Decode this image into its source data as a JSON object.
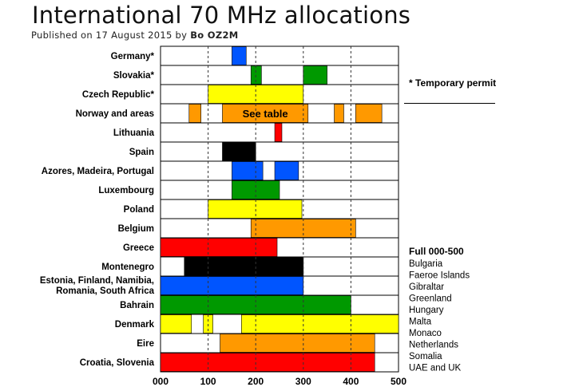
{
  "header": {
    "title": "International 70 MHz allocations",
    "published_prefix": "Published on 17 August 2015 by",
    "author": "Bo OZ2M"
  },
  "colors": {
    "yellow": "#ffff00",
    "orange": "#ff9900",
    "red": "#ff0000",
    "green": "#009900",
    "blue": "#0055ff",
    "black": "#000000"
  },
  "chart_data": {
    "type": "bar",
    "subtype": "horizontal-range",
    "xlim": [
      0,
      500
    ],
    "x_ticks": [
      0,
      100,
      200,
      300,
      400,
      500
    ],
    "x_tick_labels": [
      "000",
      "100",
      "200",
      "300",
      "400",
      "500"
    ],
    "grid": "vertical dashed lines at each tick",
    "categories": [
      {
        "name": "Germany*",
        "segments": [
          {
            "from": 150,
            "to": 180,
            "color": "blue"
          }
        ]
      },
      {
        "name": "Slovakia*",
        "segments": [
          {
            "from": 190,
            "to": 212,
            "color": "green"
          },
          {
            "from": 300,
            "to": 350,
            "color": "green"
          }
        ]
      },
      {
        "name": "Czech Republic*",
        "segments": [
          {
            "from": 100,
            "to": 300,
            "color": "yellow"
          }
        ]
      },
      {
        "name": "Norway and areas",
        "segments": [
          {
            "from": 60,
            "to": 85,
            "color": "orange"
          },
          {
            "from": 130,
            "to": 310,
            "color": "orange",
            "label": "See table"
          },
          {
            "from": 365,
            "to": 385,
            "color": "orange"
          },
          {
            "from": 410,
            "to": 465,
            "color": "orange"
          }
        ]
      },
      {
        "name": "Lithuania",
        "segments": [
          {
            "from": 240,
            "to": 255,
            "color": "red"
          }
        ]
      },
      {
        "name": "Spain",
        "segments": [
          {
            "from": 130,
            "to": 200,
            "color": "black"
          }
        ]
      },
      {
        "name": "Azores, Madeira, Portugal",
        "segments": [
          {
            "from": 150,
            "to": 215,
            "color": "blue"
          },
          {
            "from": 240,
            "to": 290,
            "color": "blue"
          }
        ]
      },
      {
        "name": "Luxembourg",
        "segments": [
          {
            "from": 150,
            "to": 250,
            "color": "green"
          }
        ]
      },
      {
        "name": "Poland",
        "segments": [
          {
            "from": 100,
            "to": 297,
            "color": "yellow"
          }
        ]
      },
      {
        "name": "Belgium",
        "segments": [
          {
            "from": 190,
            "to": 410,
            "color": "orange"
          }
        ]
      },
      {
        "name": "Greece",
        "segments": [
          {
            "from": 0,
            "to": 245,
            "color": "red"
          }
        ]
      },
      {
        "name": "Montenegro",
        "segments": [
          {
            "from": 50,
            "to": 300,
            "color": "black"
          }
        ]
      },
      {
        "name": "Estonia, Finland, Namibia,|Romania, South Africa",
        "segments": [
          {
            "from": 0,
            "to": 300,
            "color": "blue"
          }
        ]
      },
      {
        "name": "Bahrain",
        "segments": [
          {
            "from": 0,
            "to": 400,
            "color": "green"
          }
        ]
      },
      {
        "name": "Denmark",
        "segments": [
          {
            "from": 0,
            "to": 65,
            "color": "yellow"
          },
          {
            "from": 90,
            "to": 110,
            "color": "yellow"
          },
          {
            "from": 170,
            "to": 500,
            "color": "yellow"
          }
        ]
      },
      {
        "name": "Eire",
        "segments": [
          {
            "from": 125,
            "to": 450,
            "color": "orange"
          }
        ]
      },
      {
        "name": "Croatia, Slovenia",
        "segments": [
          {
            "from": 0,
            "to": 450,
            "color": "red"
          }
        ]
      }
    ],
    "annotations": {
      "temporary_permit": "* Temporary permit",
      "full_title": "Full 000-500",
      "full_list": [
        "Bulgaria",
        "Faeroe Islands",
        "Gibraltar",
        "Greenland",
        "Hungary",
        "Malta",
        "Monaco",
        "Netherlands",
        "Somalia",
        "UAE and UK"
      ]
    }
  }
}
